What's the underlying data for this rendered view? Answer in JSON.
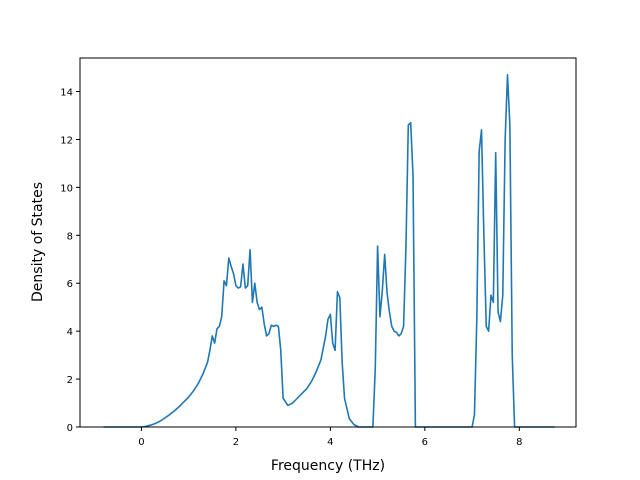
{
  "chart_data": {
    "type": "line",
    "title": "",
    "xlabel": "Frequency (THz)",
    "ylabel": "Density of States",
    "xlim": [
      -1.3,
      9.2
    ],
    "ylim": [
      0,
      15.4
    ],
    "xticks": [
      0,
      2,
      4,
      6,
      8
    ],
    "yticks": [
      0,
      2,
      4,
      6,
      8,
      10,
      12,
      14
    ],
    "grid": false,
    "legend": "none",
    "series": [
      {
        "color": "#1f77b4",
        "x": [
          -0.8,
          -0.4,
          0.0,
          0.1,
          0.2,
          0.3,
          0.4,
          0.5,
          0.6,
          0.7,
          0.8,
          0.9,
          1.0,
          1.1,
          1.2,
          1.3,
          1.4,
          1.45,
          1.5,
          1.55,
          1.6,
          1.65,
          1.7,
          1.75,
          1.8,
          1.85,
          1.9,
          1.95,
          2.0,
          2.05,
          2.1,
          2.15,
          2.2,
          2.25,
          2.3,
          2.35,
          2.4,
          2.45,
          2.5,
          2.55,
          2.6,
          2.65,
          2.7,
          2.75,
          2.8,
          2.85,
          2.9,
          2.95,
          3.0,
          3.1,
          3.2,
          3.3,
          3.4,
          3.5,
          3.6,
          3.7,
          3.8,
          3.9,
          3.95,
          4.0,
          4.05,
          4.1,
          4.15,
          4.2,
          4.25,
          4.3,
          4.4,
          4.5,
          4.6,
          4.7,
          4.8,
          4.9,
          4.95,
          5.0,
          5.05,
          5.1,
          5.15,
          5.2,
          5.25,
          5.3,
          5.35,
          5.4,
          5.45,
          5.5,
          5.55,
          5.6,
          5.65,
          5.7,
          5.75,
          5.8,
          6.0,
          6.5,
          7.0,
          7.05,
          7.1,
          7.15,
          7.2,
          7.25,
          7.3,
          7.35,
          7.4,
          7.45,
          7.5,
          7.55,
          7.6,
          7.65,
          7.7,
          7.75,
          7.8,
          7.85,
          7.9,
          7.95,
          8.0,
          8.5,
          8.75
        ],
        "y": [
          0,
          0,
          0,
          0.03,
          0.08,
          0.15,
          0.25,
          0.38,
          0.52,
          0.68,
          0.85,
          1.05,
          1.25,
          1.5,
          1.8,
          2.2,
          2.7,
          3.2,
          3.8,
          3.5,
          4.1,
          4.2,
          4.6,
          6.1,
          5.9,
          7.05,
          6.7,
          6.4,
          5.9,
          5.8,
          5.85,
          6.8,
          5.8,
          5.9,
          7.4,
          5.2,
          6.0,
          5.2,
          4.9,
          5.0,
          4.3,
          3.8,
          3.9,
          4.25,
          4.2,
          4.25,
          4.2,
          3.2,
          1.2,
          0.9,
          1.0,
          1.2,
          1.4,
          1.6,
          1.9,
          2.3,
          2.8,
          3.8,
          4.5,
          4.7,
          3.5,
          3.2,
          5.65,
          5.4,
          2.7,
          1.2,
          0.35,
          0.1,
          0,
          0,
          0,
          0,
          2.4,
          7.55,
          4.6,
          5.7,
          7.2,
          5.6,
          4.8,
          4.2,
          4.0,
          3.95,
          3.8,
          3.9,
          4.2,
          7.5,
          12.6,
          12.7,
          10.5,
          0,
          0,
          0,
          0,
          0.5,
          4.5,
          11.5,
          12.4,
          8.0,
          4.2,
          4.0,
          5.5,
          5.2,
          11.45,
          4.8,
          4.4,
          5.5,
          12.0,
          14.7,
          12.6,
          3.0,
          0,
          0,
          0,
          0,
          0
        ]
      }
    ]
  }
}
